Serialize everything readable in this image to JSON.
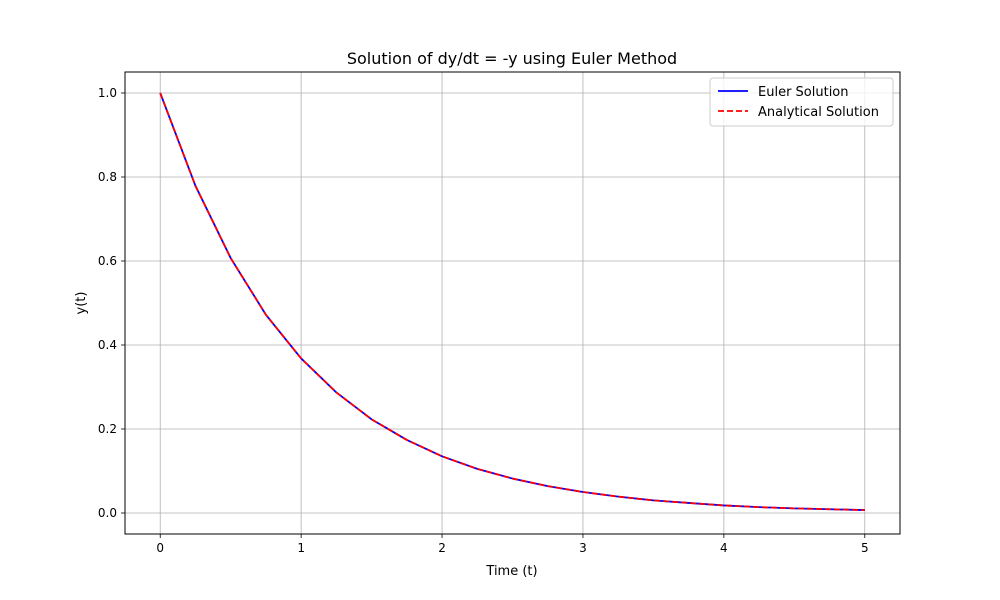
{
  "chart_data": {
    "type": "line",
    "title": "Solution of dy/dt = -y using Euler Method",
    "xlabel": "Time (t)",
    "ylabel": "y(t)",
    "xlim": [
      -0.25,
      5.25
    ],
    "ylim": [
      -0.05,
      1.05
    ],
    "xticks": [
      0,
      1,
      2,
      3,
      4,
      5
    ],
    "xtick_labels": [
      "0",
      "1",
      "2",
      "3",
      "4",
      "5"
    ],
    "yticks": [
      0.0,
      0.2,
      0.4,
      0.6,
      0.8,
      1.0
    ],
    "ytick_labels": [
      "0.0",
      "0.2",
      "0.4",
      "0.6",
      "0.8",
      "1.0"
    ],
    "grid": true,
    "legend_position": "top-right",
    "series": [
      {
        "name": "Euler Solution",
        "color": "#0000ff",
        "linestyle": "solid",
        "x": [
          0,
          0.25,
          0.5,
          0.75,
          1.0,
          1.25,
          1.5,
          1.75,
          2.0,
          2.25,
          2.5,
          2.75,
          3.0,
          3.25,
          3.5,
          3.75,
          4.0,
          4.25,
          4.5,
          4.75,
          5.0
        ],
        "y": [
          1.0,
          0.779,
          0.607,
          0.472,
          0.368,
          0.287,
          0.223,
          0.174,
          0.135,
          0.105,
          0.082,
          0.064,
          0.05,
          0.039,
          0.03,
          0.024,
          0.018,
          0.014,
          0.011,
          0.009,
          0.007
        ]
      },
      {
        "name": "Analytical Solution",
        "color": "#ff0000",
        "linestyle": "dashed",
        "x": [
          0,
          0.25,
          0.5,
          0.75,
          1.0,
          1.25,
          1.5,
          1.75,
          2.0,
          2.25,
          2.5,
          2.75,
          3.0,
          3.25,
          3.5,
          3.75,
          4.0,
          4.25,
          4.5,
          4.75,
          5.0
        ],
        "y": [
          1.0,
          0.779,
          0.607,
          0.472,
          0.368,
          0.287,
          0.223,
          0.174,
          0.135,
          0.105,
          0.082,
          0.064,
          0.05,
          0.039,
          0.03,
          0.024,
          0.018,
          0.014,
          0.011,
          0.009,
          0.007
        ]
      }
    ]
  }
}
